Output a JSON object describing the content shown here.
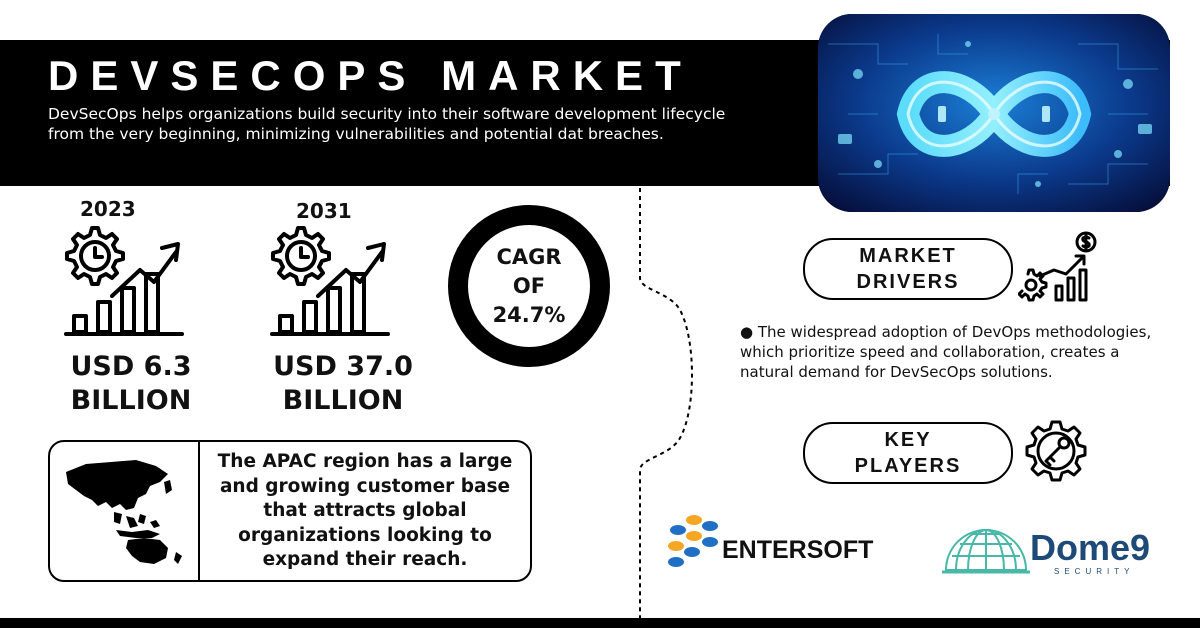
{
  "header": {
    "title": "DEVSECOPS MARKET",
    "description": "DevSecOps helps organizations build security into their software development lifecycle from the very beginning, minimizing vulnerabilities and potential dat breaches."
  },
  "hero_image": {
    "icon": "infinity-devops-loop-illustration"
  },
  "stats": {
    "left": {
      "year": "2023",
      "value_line1": "USD 6.3",
      "value_line2": "BILLION",
      "icon": "gear-clock-growth-chart-icon"
    },
    "right": {
      "year": "2031",
      "value_line1": "USD 37.0",
      "value_line2": "BILLION",
      "icon": "gear-clock-growth-chart-icon"
    }
  },
  "cagr": {
    "line1": "CAGR",
    "line2": "OF",
    "line3": "24.7%"
  },
  "apac": {
    "text": "The APAC region has a large and growing customer base that attracts global organizations looking to expand their reach.",
    "icon": "apac-map-icon"
  },
  "market_drivers": {
    "label_line1": "MARKET",
    "label_line2": "DRIVERS",
    "icon": "gear-dollar-chart-icon",
    "bullet": "● The widespread adoption of DevOps methodologies, which prioritize speed and collaboration, creates a natural demand for DevSecOps solutions."
  },
  "key_players": {
    "label_line1": "KEY",
    "label_line2": "PLAYERS",
    "icon": "key-gear-icon",
    "logos": [
      {
        "name": "ENTERSOFT",
        "icon": "entersoft-logo"
      },
      {
        "name": "Dome9",
        "subtitle": "SECURITY",
        "icon": "dome9-logo"
      }
    ]
  },
  "colors": {
    "black": "#000000",
    "dome9_blue": "#1e4a78",
    "dome9_teal": "#48b8a8",
    "entersoft_blue": "#1f6fc4",
    "entersoft_orange": "#f5a623"
  }
}
